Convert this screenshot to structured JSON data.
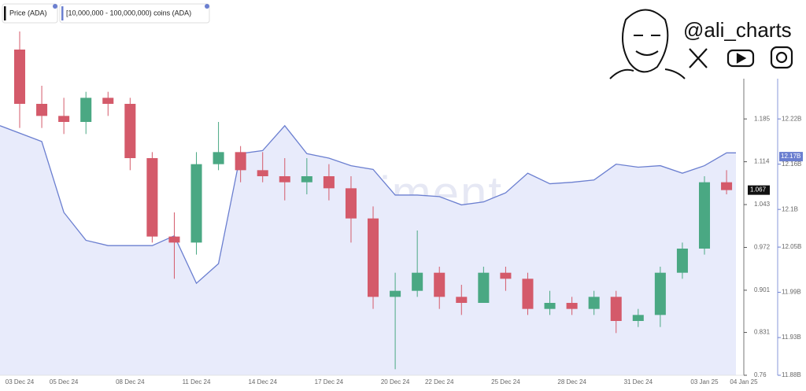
{
  "chart_data": {
    "type": "candlestick",
    "brand": "@ali_charts",
    "watermark": "santiment",
    "categories": [
      "03 Dec 24",
      null,
      "05 Dec 24",
      null,
      null,
      "08 Dec 24",
      null,
      null,
      "11 Dec 24",
      null,
      null,
      "14 Dec 24",
      null,
      null,
      "17 Dec 24",
      null,
      null,
      "20 Dec 24",
      null,
      "22 Dec 24",
      null,
      null,
      "25 Dec 24",
      null,
      null,
      "28 Dec 24",
      null,
      null,
      "31 Dec 24",
      null,
      null,
      "03 Jan 25",
      "04 Jan 25"
    ],
    "series": [
      {
        "name": "Price (ADA)",
        "color": "#111111",
        "up_color": "#4aa883",
        "down_color": "#d45a6a",
        "open": [
          1.3,
          1.21,
          1.19,
          1.18,
          1.22,
          1.21,
          1.12,
          0.99,
          0.98,
          1.11,
          1.13,
          1.1,
          1.09,
          1.08,
          1.09,
          1.07,
          1.02,
          0.89,
          0.9,
          0.93,
          0.89,
          0.88,
          0.93,
          0.92,
          0.87,
          0.88,
          0.87,
          0.89,
          0.85,
          0.86,
          0.93,
          0.97,
          1.08
        ],
        "high": [
          1.33,
          1.24,
          1.22,
          1.23,
          1.23,
          1.22,
          1.13,
          1.03,
          1.13,
          1.18,
          1.14,
          1.13,
          1.12,
          1.12,
          1.11,
          1.09,
          1.04,
          0.93,
          1.0,
          0.94,
          0.91,
          0.94,
          0.94,
          0.93,
          0.9,
          0.89,
          0.9,
          0.9,
          0.87,
          0.94,
          0.98,
          1.09,
          1.1
        ],
        "low": [
          1.17,
          1.17,
          1.16,
          1.16,
          1.19,
          1.1,
          0.98,
          0.92,
          0.96,
          1.1,
          1.08,
          1.08,
          1.05,
          1.06,
          1.05,
          0.98,
          0.87,
          0.77,
          0.89,
          0.87,
          0.86,
          0.88,
          0.9,
          0.86,
          0.86,
          0.86,
          0.86,
          0.83,
          0.84,
          0.84,
          0.92,
          0.96,
          1.06
        ],
        "close": [
          1.21,
          1.19,
          1.18,
          1.22,
          1.21,
          1.12,
          0.99,
          0.98,
          1.11,
          1.13,
          1.1,
          1.09,
          1.08,
          1.09,
          1.07,
          1.02,
          0.89,
          0.9,
          0.93,
          0.89,
          0.88,
          0.93,
          0.92,
          0.87,
          0.88,
          0.87,
          0.89,
          0.85,
          0.86,
          0.93,
          0.97,
          1.08,
          1.067
        ]
      },
      {
        "name": "[10,000,000 - 100,000,000) coins (ADA)",
        "color": "#6b7fd0",
        "fill": "#e8ebfb",
        "axis": "y2",
        "values": [
          12211000000,
          12190000000,
          12096000000,
          12059000000,
          12052000000,
          12052000000,
          12052000000,
          12065000000,
          12002000000,
          12028000000,
          12174000000,
          12178000000,
          12211000000,
          12174000000,
          12168000000,
          12158000000,
          12153000000,
          12119000000,
          12119000000,
          12117000000,
          12106000000,
          12110000000,
          12122000000,
          12148000000,
          12134000000,
          12136000000,
          12139000000,
          12160000000,
          12156000000,
          12158000000,
          12148000000,
          12158000000,
          12175000000
        ]
      }
    ],
    "ylim": [
      0.76,
      1.33
    ],
    "yticks": [
      0.76,
      0.831,
      0.901,
      0.972,
      1.043,
      1.114,
      1.185
    ],
    "y2lim": [
      11880000000,
      12336000000
    ],
    "y2ticks": [
      {
        "value": 11880000000,
        "label": "11.88B"
      },
      {
        "value": 11930000000,
        "label": "11.93B"
      },
      {
        "value": 11990000000,
        "label": "11.99B"
      },
      {
        "value": 12050000000,
        "label": "12.05B"
      },
      {
        "value": 12100000000,
        "label": "12.1B"
      },
      {
        "value": 12160000000,
        "label": "12.16B"
      },
      {
        "value": 12220000000,
        "label": "12.22B"
      }
    ],
    "price_marker": 1.067,
    "holdings_marker": {
      "value": 12170000000,
      "label": "12.17B"
    }
  }
}
